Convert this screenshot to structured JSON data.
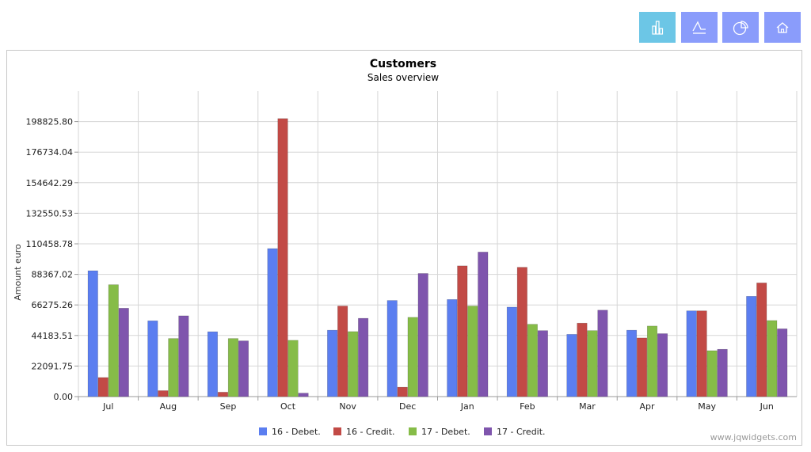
{
  "toolbar": {
    "buttons": [
      {
        "icon": "bar-chart-icon",
        "color": "#6cc6e6"
      },
      {
        "icon": "line-chart-icon",
        "color": "#8a9cfb"
      },
      {
        "icon": "pie-chart-icon",
        "color": "#8a9cfb"
      },
      {
        "icon": "home-icon",
        "color": "#8a9cfb"
      }
    ]
  },
  "watermark": "www.jqwidgets.com",
  "chart_data": {
    "type": "bar",
    "title": "Customers",
    "subtitle": "Sales overview",
    "xlabel": "",
    "ylabel": "Amount euro",
    "categories": [
      "Jul",
      "Aug",
      "Sep",
      "Oct",
      "Nov",
      "Dec",
      "Jan",
      "Feb",
      "Mar",
      "Apr",
      "May",
      "Jun"
    ],
    "yticks": [
      "0.00",
      "22091.75",
      "44183.51",
      "66275.26",
      "88367.02",
      "110458.78",
      "132550.53",
      "154642.29",
      "176734.04",
      "198825.80"
    ],
    "ylim": [
      0,
      220917.55
    ],
    "grid": true,
    "legend_position": "bottom",
    "series": [
      {
        "name": "16 - Debet.",
        "color": "#5b7ef0",
        "values": [
          91000,
          54800,
          46900,
          107000,
          48000,
          69500,
          70200,
          64700,
          45000,
          48000,
          62000,
          72500
        ]
      },
      {
        "name": "16 - Credit.",
        "color": "#c24a46",
        "values": [
          13800,
          4300,
          3200,
          201000,
          65500,
          6800,
          94500,
          93500,
          53100,
          42400,
          62000,
          82200
        ]
      },
      {
        "name": "17 - Debet.",
        "color": "#86bc48",
        "values": [
          80900,
          42000,
          42000,
          40700,
          47000,
          57300,
          65500,
          52300,
          47700,
          51000,
          33200,
          55000
        ]
      },
      {
        "name": "17 - Credit.",
        "color": "#7f55ad",
        "values": [
          63900,
          58400,
          40300,
          2500,
          56600,
          89000,
          104500,
          47700,
          62500,
          45500,
          34200,
          49000
        ]
      }
    ]
  }
}
